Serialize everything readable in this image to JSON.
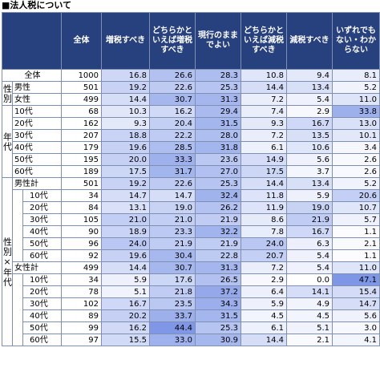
{
  "title": "■法人税について",
  "headers": [
    "全体",
    "増税すべき",
    "どちらかといえば増税すべき",
    "現行のままでよい",
    "どちらかといえば減税すべき",
    "減税すべき",
    "いずれでもない・わからない"
  ],
  "groups": {
    "gender": "性別",
    "age": "年代",
    "cross": "性別×年代"
  },
  "rows": [
    {
      "label": "全体",
      "values": [
        "1000",
        "16.8",
        "26.6",
        "28.3",
        "10.8",
        "9.4",
        "8.1"
      ]
    },
    {
      "label": "男性",
      "values": [
        "501",
        "19.2",
        "22.6",
        "25.3",
        "14.4",
        "13.4",
        "5.2"
      ]
    },
    {
      "label": "女性",
      "values": [
        "499",
        "14.4",
        "30.7",
        "31.3",
        "7.2",
        "5.4",
        "11.0"
      ]
    },
    {
      "label": "10代",
      "values": [
        "68",
        "10.3",
        "16.2",
        "29.4",
        "7.4",
        "2.9",
        "33.8"
      ]
    },
    {
      "label": "20代",
      "values": [
        "162",
        "9.3",
        "20.4",
        "31.5",
        "9.3",
        "16.7",
        "13.0"
      ]
    },
    {
      "label": "30代",
      "values": [
        "207",
        "18.8",
        "22.2",
        "28.0",
        "7.2",
        "13.5",
        "10.1"
      ]
    },
    {
      "label": "40代",
      "values": [
        "179",
        "19.6",
        "28.5",
        "31.8",
        "6.1",
        "10.6",
        "3.4"
      ]
    },
    {
      "label": "50代",
      "values": [
        "195",
        "20.0",
        "33.3",
        "23.6",
        "14.9",
        "5.6",
        "2.6"
      ]
    },
    {
      "label": "60代",
      "values": [
        "189",
        "17.5",
        "31.7",
        "27.0",
        "17.5",
        "3.7",
        "2.6"
      ]
    },
    {
      "label": "男性計",
      "values": [
        "501",
        "19.2",
        "22.6",
        "25.3",
        "14.4",
        "13.4",
        "5.2"
      ]
    },
    {
      "label": "10代",
      "values": [
        "34",
        "14.7",
        "14.7",
        "32.4",
        "11.8",
        "5.9",
        "20.6"
      ]
    },
    {
      "label": "20代",
      "values": [
        "84",
        "13.1",
        "19.0",
        "26.2",
        "11.9",
        "19.0",
        "10.7"
      ]
    },
    {
      "label": "30代",
      "values": [
        "105",
        "21.0",
        "21.0",
        "21.9",
        "8.6",
        "21.9",
        "5.7"
      ]
    },
    {
      "label": "40代",
      "values": [
        "90",
        "18.9",
        "23.3",
        "32.2",
        "7.8",
        "16.7",
        "1.1"
      ]
    },
    {
      "label": "50代",
      "values": [
        "96",
        "24.0",
        "21.9",
        "21.9",
        "24.0",
        "6.3",
        "2.1"
      ]
    },
    {
      "label": "60代",
      "values": [
        "92",
        "19.6",
        "30.4",
        "22.8",
        "20.7",
        "5.4",
        "1.1"
      ]
    },
    {
      "label": "女性計",
      "values": [
        "499",
        "14.4",
        "30.7",
        "31.3",
        "7.2",
        "5.4",
        "11.0"
      ]
    },
    {
      "label": "10代",
      "values": [
        "34",
        "5.9",
        "17.6",
        "26.5",
        "2.9",
        "0.0",
        "47.1"
      ]
    },
    {
      "label": "20代",
      "values": [
        "78",
        "5.1",
        "21.8",
        "37.2",
        "6.4",
        "14.1",
        "15.4"
      ]
    },
    {
      "label": "30代",
      "values": [
        "102",
        "16.7",
        "23.5",
        "34.3",
        "5.9",
        "4.9",
        "14.7"
      ]
    },
    {
      "label": "40代",
      "values": [
        "89",
        "20.2",
        "33.7",
        "31.5",
        "4.5",
        "4.5",
        "5.6"
      ]
    },
    {
      "label": "50代",
      "values": [
        "99",
        "16.2",
        "44.4",
        "25.3",
        "6.1",
        "5.1",
        "3.0"
      ]
    },
    {
      "label": "60代",
      "values": [
        "97",
        "15.5",
        "33.0",
        "30.9",
        "14.4",
        "2.1",
        "4.1"
      ]
    }
  ],
  "colors": {
    "header": "#27407e",
    "total_row": "#ffffff",
    "first_col": "#ffffff"
  }
}
